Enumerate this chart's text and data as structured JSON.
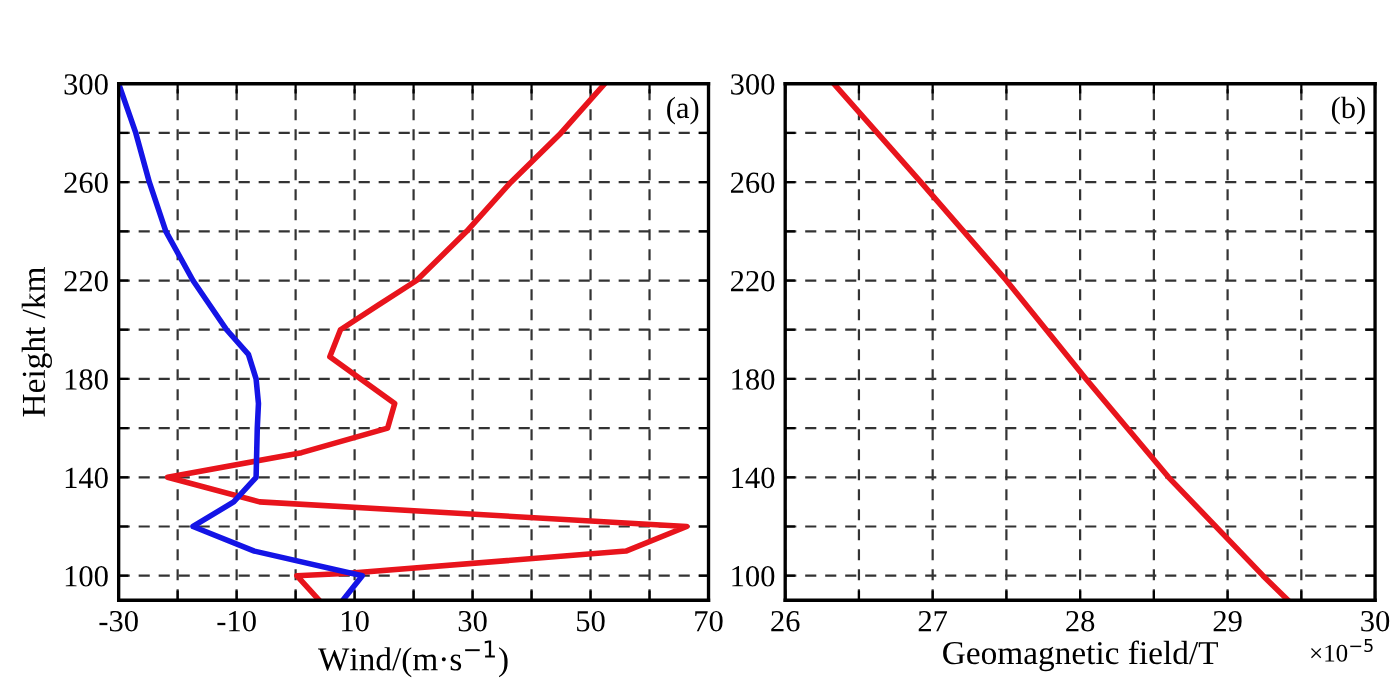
{
  "chart_data": [
    {
      "type": "line",
      "orientation": "horizontal",
      "xlabel": "Wind/(m·s$^{−1}$)",
      "ylabel": "Height /km",
      "annotations": [
        "(a)"
      ],
      "series": [
        {
          "color": "#e8141c",
          "x": [
            300,
            280,
            260,
            240,
            220,
            210,
            200,
            189,
            170,
            160,
            150,
            140,
            130,
            120,
            110,
            101,
            100,
            90
          ],
          "values": [
            52.4,
            45,
            36.5,
            29,
            20.5,
            14,
            7.6,
            5.8,
            16.8,
            15.6,
            1,
            -21.7,
            -6.1,
            66.3,
            56,
            9,
            0.2,
            4
          ]
        },
        {
          "color": "#1414e6",
          "x": [
            300,
            280,
            260,
            240,
            220,
            200,
            190,
            180,
            170,
            160,
            140,
            130,
            120,
            110,
            100,
            90
          ],
          "values": [
            -30,
            -27.1,
            -24.8,
            -22,
            -17.4,
            -11.7,
            -8,
            -6.7,
            -6.3,
            -6.5,
            -6.7,
            -10.5,
            -17.4,
            -7,
            11.3,
            8
          ]
        }
      ],
      "xlim": [
        -30,
        70
      ],
      "xticks": [
        -30,
        {
          "value": -20,
          "label": null
        },
        -10,
        {
          "value": 0,
          "label": null
        },
        10,
        {
          "value": 20,
          "label": null
        },
        30,
        {
          "value": 40,
          "label": null
        },
        50,
        {
          "value": 60,
          "label": null
        },
        70
      ],
      "ylim": [
        90,
        300
      ],
      "yticks": [
        100,
        {
          "value": 120,
          "label": null
        },
        140,
        {
          "value": 160,
          "label": null
        },
        180,
        {
          "value": 200,
          "label": null
        },
        220,
        {
          "value": 240,
          "label": null
        },
        260,
        {
          "value": 280,
          "label": null
        },
        300
      ],
      "grid": true,
      "line_style": "solid",
      "marker": "none"
    },
    {
      "type": "line",
      "orientation": "horizontal",
      "xlabel": "Geomagnetic field/T",
      "annotations": [
        "(b)",
        "×10$^{−5}$"
      ],
      "series": [
        {
          "color": "#e8141c",
          "x": [
            300,
            260,
            220,
            180,
            140,
            100,
            90
          ],
          "values": [
            26.33,
            26.92,
            27.5,
            28.04,
            28.6,
            29.24,
            29.41
          ]
        }
      ],
      "xlim": [
        26,
        30
      ],
      "xticks": [
        26,
        {
          "value": 26.5,
          "label": null
        },
        27,
        {
          "value": 27.5,
          "label": null
        },
        28,
        {
          "value": 28.5,
          "label": null
        },
        29,
        {
          "value": 29.5,
          "label": null
        },
        30
      ],
      "ylim": [
        90,
        300
      ],
      "yticks": [
        100,
        {
          "value": 120,
          "label": null
        },
        140,
        {
          "value": 160,
          "label": null
        },
        180,
        {
          "value": 200,
          "label": null
        },
        220,
        {
          "value": 240,
          "label": null
        },
        260,
        {
          "value": 280,
          "label": null
        },
        300
      ],
      "grid": true,
      "line_style": "solid",
      "marker": "none"
    }
  ]
}
